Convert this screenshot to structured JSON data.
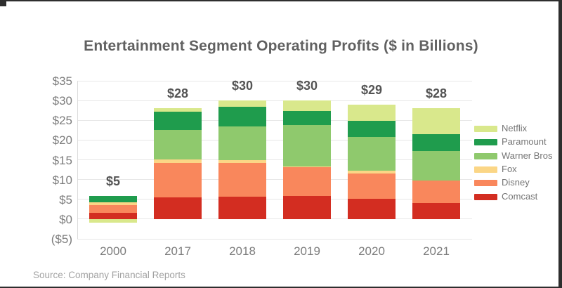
{
  "page": {
    "source": "Source: Company Financial Reports"
  },
  "chart_data": {
    "type": "bar",
    "stacked": true,
    "title": "Entertainment Segment Operating Profits ($ in Billions)",
    "categories": [
      "2000",
      "2017",
      "2018",
      "2019",
      "2020",
      "2021"
    ],
    "total_labels": [
      "$5",
      "$28",
      "$30",
      "$30",
      "$29",
      "$28"
    ],
    "series": [
      {
        "name": "Comcast",
        "color": "#d32d21",
        "values": [
          1.5,
          5.5,
          5.7,
          5.8,
          5.2,
          4.0
        ]
      },
      {
        "name": "Disney",
        "color": "#f9875c",
        "values": [
          2.0,
          8.7,
          8.5,
          7.3,
          6.4,
          5.8
        ]
      },
      {
        "name": "Fox",
        "color": "#fbd686",
        "values": [
          0.7,
          0.9,
          0.8,
          0.3,
          0.6,
          0.0
        ]
      },
      {
        "name": "Warner Bros",
        "color": "#8fc96d",
        "values": [
          0.0,
          7.5,
          8.5,
          10.4,
          8.6,
          7.5
        ]
      },
      {
        "name": "Paramount",
        "color": "#1f9c4d",
        "values": [
          1.6,
          4.6,
          4.9,
          3.6,
          4.0,
          4.2
        ]
      },
      {
        "name": "Netflix",
        "color": "#d9e88c",
        "values": [
          -0.9,
          0.8,
          1.6,
          2.6,
          4.2,
          6.5
        ]
      }
    ],
    "y_ticks": [
      "$35",
      "$30",
      "$25",
      "$20",
      "$15",
      "$10",
      "$5",
      "$0",
      "($5)"
    ],
    "y_tick_values": [
      35,
      30,
      25,
      20,
      15,
      10,
      5,
      0,
      -5
    ],
    "ylim": [
      -5,
      35
    ],
    "grid": true,
    "legend_position": "right",
    "legend_order_top_to_bottom": [
      "Netflix",
      "Paramount",
      "Warner Bros",
      "Fox",
      "Disney",
      "Comcast"
    ]
  }
}
